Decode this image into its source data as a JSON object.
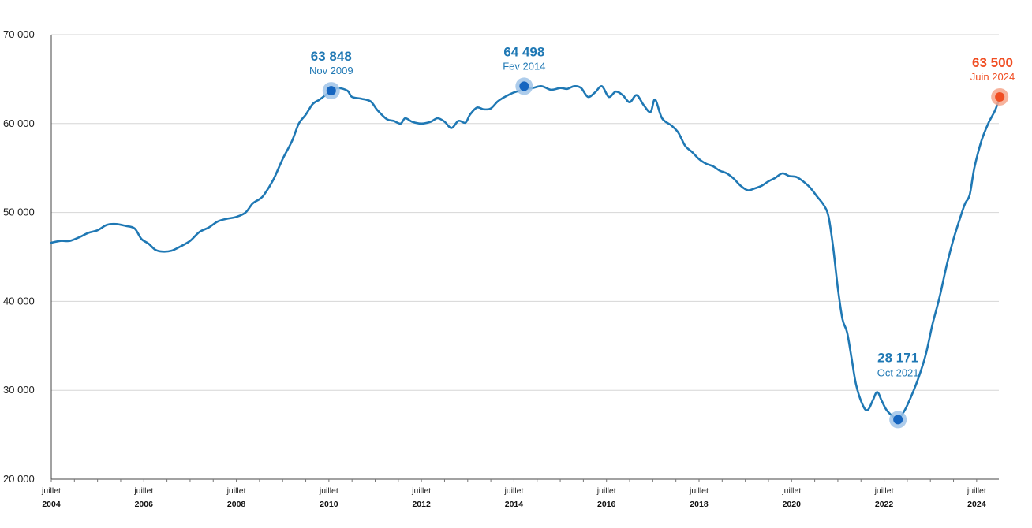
{
  "chart_data": {
    "type": "line",
    "title": "",
    "xlabel": "",
    "ylabel": "",
    "xlim": [
      2004.5,
      2024.5
    ],
    "ylim": [
      20000,
      70000
    ],
    "grid": true,
    "colors": {
      "line": "#1f78b4",
      "marker": "#1565c0",
      "halo": "#9fc3e7",
      "current": "#f04e23",
      "current_halo": "#f6a68c",
      "grid": "#d6d6d6"
    },
    "yticks": [
      {
        "value": 20000,
        "label": "20 000"
      },
      {
        "value": 30000,
        "label": "30 000"
      },
      {
        "value": 40000,
        "label": "40 000"
      },
      {
        "value": 50000,
        "label": "50 000"
      },
      {
        "value": 60000,
        "label": "60 000"
      },
      {
        "value": 70000,
        "label": "70 000"
      }
    ],
    "xticks": [
      {
        "value": 2004.5,
        "top": "juillet",
        "bottom": "2004"
      },
      {
        "value": 2006.5,
        "top": "juillet",
        "bottom": "2006"
      },
      {
        "value": 2008.5,
        "top": "juillet",
        "bottom": "2008"
      },
      {
        "value": 2010.5,
        "top": "juillet",
        "bottom": "2010"
      },
      {
        "value": 2012.5,
        "top": "juillet",
        "bottom": "2012"
      },
      {
        "value": 2014.5,
        "top": "juillet",
        "bottom": "2014"
      },
      {
        "value": 2016.5,
        "top": "juillet",
        "bottom": "2016"
      },
      {
        "value": 2018.5,
        "top": "juillet",
        "bottom": "2018"
      },
      {
        "value": 2020.5,
        "top": "juillet",
        "bottom": "2020"
      },
      {
        "value": 2022.5,
        "top": "juillet",
        "bottom": "2022"
      },
      {
        "value": 2024.5,
        "top": "juillet",
        "bottom": "2024"
      }
    ],
    "series": [
      {
        "points": [
          [
            2004.5,
            46600
          ],
          [
            2004.7,
            46800
          ],
          [
            2004.9,
            46800
          ],
          [
            2005.1,
            47200
          ],
          [
            2005.3,
            47700
          ],
          [
            2005.5,
            48000
          ],
          [
            2005.7,
            48600
          ],
          [
            2005.9,
            48700
          ],
          [
            2006.1,
            48500
          ],
          [
            2006.3,
            48200
          ],
          [
            2006.45,
            47000
          ],
          [
            2006.6,
            46500
          ],
          [
            2006.75,
            45800
          ],
          [
            2006.9,
            45600
          ],
          [
            2007.1,
            45700
          ],
          [
            2007.3,
            46200
          ],
          [
            2007.5,
            46800
          ],
          [
            2007.7,
            47800
          ],
          [
            2007.9,
            48300
          ],
          [
            2008.1,
            49000
          ],
          [
            2008.3,
            49300
          ],
          [
            2008.5,
            49500
          ],
          [
            2008.7,
            50000
          ],
          [
            2008.85,
            51000
          ],
          [
            2009.0,
            51500
          ],
          [
            2009.1,
            52000
          ],
          [
            2009.3,
            53700
          ],
          [
            2009.5,
            56000
          ],
          [
            2009.7,
            58000
          ],
          [
            2009.85,
            60000
          ],
          [
            2010.0,
            61000
          ],
          [
            2010.15,
            62200
          ],
          [
            2010.3,
            62700
          ],
          [
            2010.45,
            63300
          ],
          [
            2010.55,
            63700
          ],
          [
            2010.7,
            64000
          ],
          [
            2010.9,
            63700
          ],
          [
            2011.0,
            63000
          ],
          [
            2011.2,
            62800
          ],
          [
            2011.4,
            62500
          ],
          [
            2011.55,
            61500
          ],
          [
            2011.75,
            60500
          ],
          [
            2011.9,
            60300
          ],
          [
            2012.05,
            60000
          ],
          [
            2012.15,
            60600
          ],
          [
            2012.3,
            60200
          ],
          [
            2012.5,
            60000
          ],
          [
            2012.7,
            60200
          ],
          [
            2012.85,
            60600
          ],
          [
            2013.0,
            60200
          ],
          [
            2013.15,
            59500
          ],
          [
            2013.3,
            60300
          ],
          [
            2013.45,
            60100
          ],
          [
            2013.55,
            61000
          ],
          [
            2013.7,
            61800
          ],
          [
            2013.85,
            61600
          ],
          [
            2014.0,
            61700
          ],
          [
            2014.15,
            62500
          ],
          [
            2014.3,
            63000
          ],
          [
            2014.5,
            63500
          ],
          [
            2014.7,
            63800
          ],
          [
            2014.9,
            64000
          ],
          [
            2015.1,
            64200
          ],
          [
            2015.3,
            63800
          ],
          [
            2015.5,
            64000
          ],
          [
            2015.65,
            63900
          ],
          [
            2015.8,
            64200
          ],
          [
            2015.95,
            64000
          ],
          [
            2016.1,
            63000
          ],
          [
            2016.25,
            63500
          ],
          [
            2016.4,
            64200
          ],
          [
            2016.55,
            63000
          ],
          [
            2016.7,
            63600
          ],
          [
            2016.85,
            63200
          ],
          [
            2017.0,
            62400
          ],
          [
            2017.15,
            63200
          ],
          [
            2017.3,
            62100
          ],
          [
            2017.45,
            61300
          ],
          [
            2017.55,
            62700
          ],
          [
            2017.7,
            60600
          ],
          [
            2017.9,
            59800
          ],
          [
            2018.05,
            59000
          ],
          [
            2018.2,
            57500
          ],
          [
            2018.35,
            56800
          ],
          [
            2018.5,
            56000
          ],
          [
            2018.65,
            55500
          ],
          [
            2018.8,
            55200
          ],
          [
            2018.95,
            54700
          ],
          [
            2019.1,
            54400
          ],
          [
            2019.25,
            53800
          ],
          [
            2019.4,
            53000
          ],
          [
            2019.55,
            52500
          ],
          [
            2019.7,
            52700
          ],
          [
            2019.85,
            53000
          ],
          [
            2020.0,
            53500
          ],
          [
            2020.15,
            53900
          ],
          [
            2020.3,
            54400
          ],
          [
            2020.45,
            54100
          ],
          [
            2020.6,
            54000
          ],
          [
            2020.75,
            53500
          ],
          [
            2020.9,
            52800
          ],
          [
            2021.05,
            51800
          ],
          [
            2021.2,
            50800
          ],
          [
            2021.3,
            49500
          ],
          [
            2021.4,
            46000
          ],
          [
            2021.5,
            41500
          ],
          [
            2021.6,
            38000
          ],
          [
            2021.7,
            36500
          ],
          [
            2021.8,
            33500
          ],
          [
            2021.9,
            30500
          ],
          [
            2022.05,
            28200
          ],
          [
            2022.15,
            27800
          ],
          [
            2022.25,
            28800
          ],
          [
            2022.35,
            29800
          ],
          [
            2022.45,
            28800
          ],
          [
            2022.55,
            27800
          ],
          [
            2022.7,
            27000
          ],
          [
            2022.8,
            26700
          ],
          [
            2022.95,
            27800
          ],
          [
            2023.1,
            29500
          ],
          [
            2023.25,
            31500
          ],
          [
            2023.4,
            34000
          ],
          [
            2023.55,
            37500
          ],
          [
            2023.7,
            40500
          ],
          [
            2023.85,
            44000
          ],
          [
            2024.0,
            47000
          ],
          [
            2024.15,
            49500
          ],
          [
            2024.25,
            51000
          ],
          [
            2024.35,
            52000
          ],
          [
            2024.45,
            55000
          ],
          [
            2024.6,
            58000
          ],
          [
            2024.75,
            60000
          ],
          [
            2024.9,
            61500
          ],
          [
            2025.0,
            63000
          ]
        ]
      }
    ],
    "annotations": [
      {
        "value_label": "63 848",
        "date_label": "Nov 2009",
        "x": 2010.55,
        "y": 63700,
        "color": "#1f78b4",
        "dot": "#1565c0",
        "halo": "#9fc3e7"
      },
      {
        "value_label": "64 498",
        "date_label": "Fev 2014",
        "x": 2014.72,
        "y": 64200,
        "color": "#1f78b4",
        "dot": "#1565c0",
        "halo": "#9fc3e7"
      },
      {
        "value_label": "28 171",
        "date_label": "Oct 2021",
        "x": 2022.8,
        "y": 26700,
        "color": "#1f78b4",
        "dot": "#1565c0",
        "halo": "#9fc3e7"
      },
      {
        "value_label": "63 500",
        "date_label": "Juin 2024",
        "x": 2025.0,
        "y": 63000,
        "color": "#f04e23",
        "dot": "#f04e23",
        "halo": "#f6a68c"
      }
    ]
  }
}
